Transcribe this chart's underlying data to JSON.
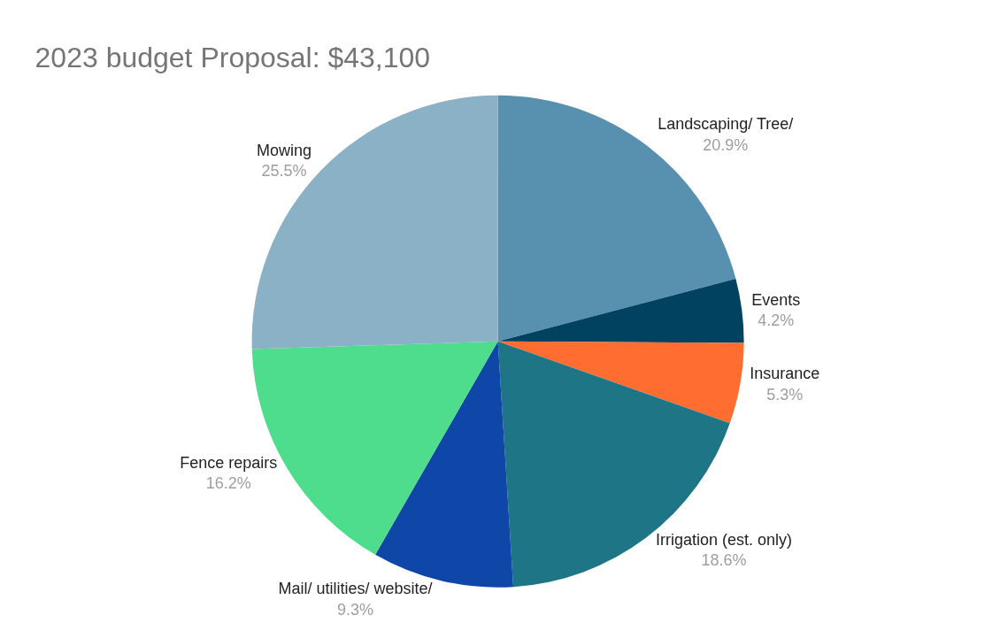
{
  "chart_data": {
    "type": "pie",
    "title": "2023 budget Proposal: $43,100",
    "categories": [
      "Landscaping/ Tree/",
      "Events",
      "Insurance",
      "Irrigation (est. only)",
      "Mail/ utilities/ website/",
      "Fence repairs",
      "Mowing"
    ],
    "values": [
      20.9,
      4.2,
      5.3,
      18.6,
      9.3,
      16.2,
      25.5
    ],
    "value_labels": [
      "20.9%",
      "4.2%",
      "5.3%",
      "18.6%",
      "9.3%",
      "16.2%",
      "25.5%"
    ],
    "colors": [
      "#5891b0",
      "#00425f",
      "#ff6d31",
      "#1e7585",
      "#0f47a9",
      "#4ddd8c",
      "#8ab1c6"
    ],
    "legend": false
  }
}
